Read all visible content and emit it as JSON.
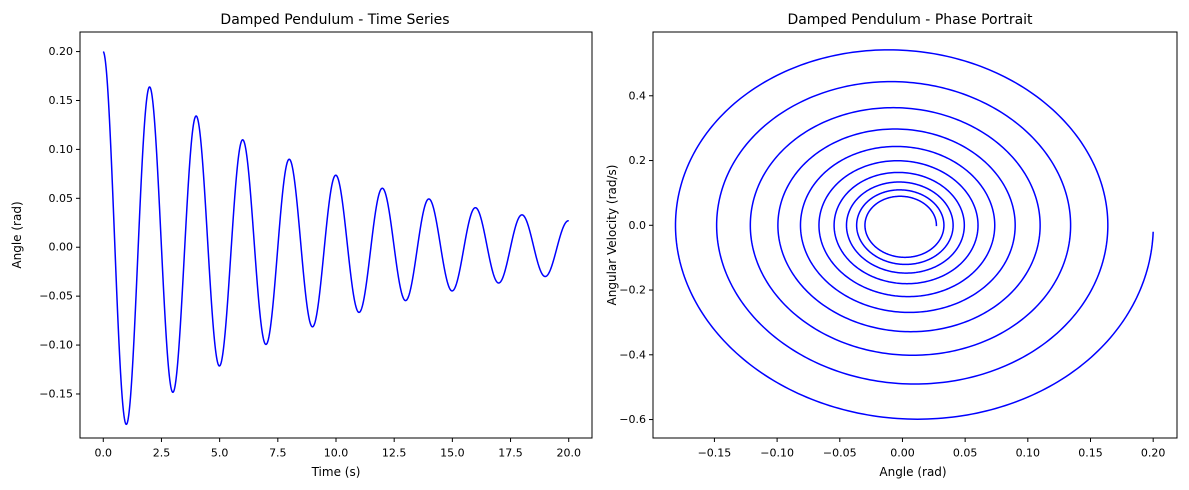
{
  "chart_data": [
    {
      "type": "line",
      "title": "Damped Pendulum - Time Series",
      "xlabel": "Time (s)",
      "ylabel": "Angle (rad)",
      "xlim": [
        -1.0,
        21.0
      ],
      "ylim": [
        -0.195,
        0.22
      ],
      "xticks": [
        0,
        2.5,
        5,
        7.5,
        10,
        12.5,
        15,
        17.5,
        20
      ],
      "xtick_labels": [
        "0.0",
        "2.5",
        "5.0",
        "7.5",
        "10.0",
        "12.5",
        "15.0",
        "17.5",
        "20.0"
      ],
      "yticks": [
        -0.15,
        -0.1,
        -0.05,
        0,
        0.05,
        0.1,
        0.15,
        0.2
      ],
      "ytick_labels": [
        "−0.15",
        "−0.10",
        "−0.05",
        "0.00",
        "0.05",
        "0.10",
        "0.15",
        "0.20"
      ],
      "grid": false,
      "line_color": "#0000ff",
      "series": [
        {
          "initial_angle": 0.2,
          "initial_velocity": 0,
          "period": 2.0,
          "decay_rate": 0.1,
          "t_range": [
            0,
            20
          ],
          "extrema": [
            {
              "t": 0.0,
              "y": 0.2
            },
            {
              "t": 1.0,
              "y": -0.18
            },
            {
              "t": 2.0,
              "y": 0.163
            },
            {
              "t": 3.0,
              "y": -0.147
            },
            {
              "t": 4.0,
              "y": 0.133
            },
            {
              "t": 5.0,
              "y": -0.12
            },
            {
              "t": 6.0,
              "y": 0.109
            },
            {
              "t": 7.0,
              "y": -0.098
            },
            {
              "t": 8.0,
              "y": 0.089
            },
            {
              "t": 9.0,
              "y": -0.08
            },
            {
              "t": 10.0,
              "y": 0.073
            },
            {
              "t": 11.0,
              "y": -0.066
            },
            {
              "t": 12.0,
              "y": 0.06
            },
            {
              "t": 13.0,
              "y": -0.054
            },
            {
              "t": 14.0,
              "y": 0.049
            },
            {
              "t": 15.0,
              "y": -0.044
            },
            {
              "t": 16.0,
              "y": 0.04
            },
            {
              "t": 17.0,
              "y": -0.036
            },
            {
              "t": 18.0,
              "y": 0.033
            },
            {
              "t": 19.0,
              "y": -0.03
            },
            {
              "t": 20.0,
              "y": 0.026
            }
          ]
        }
      ]
    },
    {
      "type": "line",
      "title": "Damped Pendulum - Phase Portrait",
      "xlabel": "Angle (rad)",
      "ylabel": "Angular Velocity (rad/s)",
      "xlim": [
        -0.199,
        0.219
      ],
      "ylim": [
        -0.657,
        0.597
      ],
      "xticks": [
        -0.15,
        -0.1,
        -0.05,
        0,
        0.05,
        0.1,
        0.15,
        0.2
      ],
      "xtick_labels": [
        "−0.15",
        "−0.10",
        "−0.05",
        "0.00",
        "0.05",
        "0.10",
        "0.15",
        "0.20"
      ],
      "yticks": [
        -0.6,
        -0.4,
        -0.2,
        0,
        0.2,
        0.4
      ],
      "ytick_labels": [
        "−0.6",
        "−0.4",
        "−0.2",
        "0.0",
        "0.2",
        "0.4"
      ],
      "grid": false,
      "line_color": "#0000ff",
      "series": [
        {
          "start": {
            "x": 0.2,
            "y": 0.0
          },
          "end": {
            "x": 0.026,
            "y": 0.022
          },
          "decay_rate": 0.1,
          "period": 2.0
        }
      ]
    }
  ]
}
